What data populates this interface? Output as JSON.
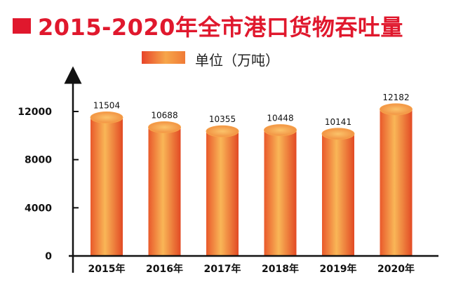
{
  "title": "2015-2020年全市港口货物吞吐量",
  "legend": {
    "label": "单位（万吨）"
  },
  "colors": {
    "title": "#e0182d",
    "bar_light": "#f9b657",
    "bar_mid": "#f28a3c",
    "bar_dark": "#e24a24",
    "axis": "#111111"
  },
  "chart_data": {
    "type": "bar",
    "title": "2015-2020年全市港口货物吞吐量",
    "categories": [
      "2015年",
      "2016年",
      "2017年",
      "2018年",
      "2019年",
      "2020年"
    ],
    "series": [
      {
        "name": "单位（万吨）",
        "values": [
          11504,
          10688,
          10355,
          10448,
          10141,
          12182
        ]
      }
    ],
    "data_labels": [
      "11504",
      "10688",
      "10355",
      "10448",
      "10141",
      "12182"
    ],
    "y_ticks": [
      0,
      4000,
      8000,
      12000
    ],
    "y_tick_labels": [
      "0",
      "4000",
      "8000",
      "12000"
    ],
    "ylim": [
      0,
      14000
    ],
    "xlabel": "",
    "ylabel": "",
    "grid": false,
    "legend_position": "top"
  }
}
